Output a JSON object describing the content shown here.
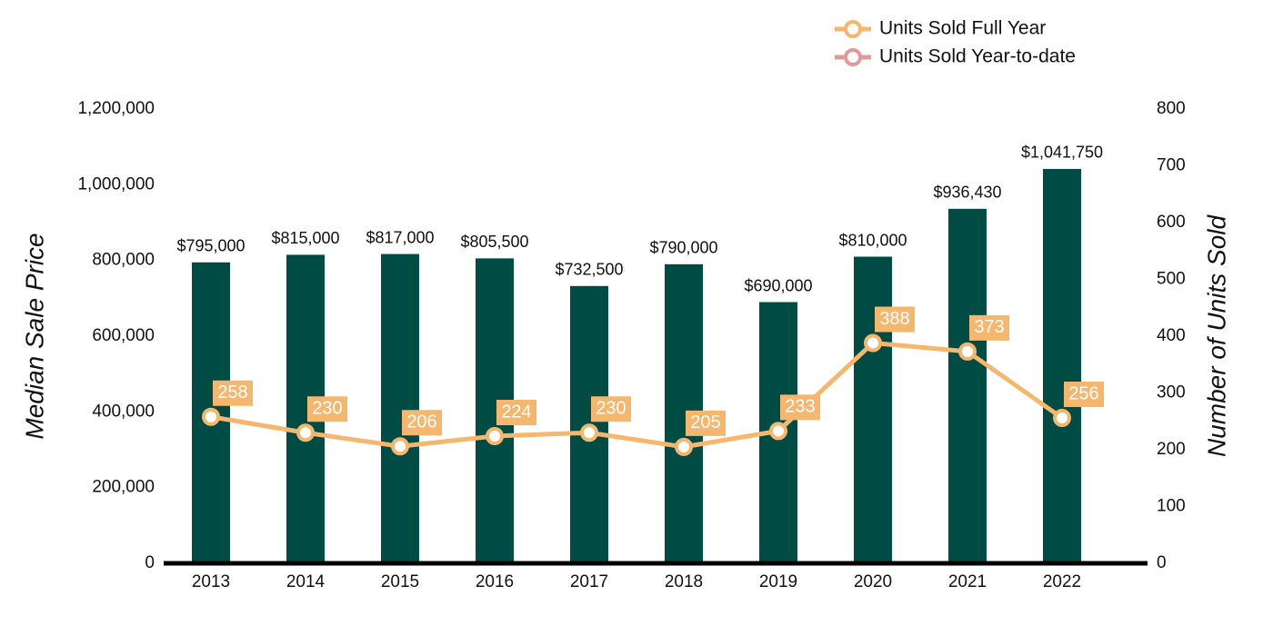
{
  "chart_data": {
    "type": "bar",
    "categories": [
      "2013",
      "2014",
      "2015",
      "2016",
      "2017",
      "2018",
      "2019",
      "2020",
      "2021",
      "2022"
    ],
    "values": [
      795000,
      815000,
      817000,
      805500,
      732500,
      790000,
      690000,
      810000,
      936430,
      1041750
    ],
    "value_labels": [
      "$795,000",
      "$815,000",
      "$817,000",
      "$805,500",
      "$732,500",
      "$790,000",
      "$690,000",
      "$810,000",
      "$936,430",
      "$1,041,750"
    ],
    "color": "#004c45",
    "y_label": "Median Sale Price",
    "y2_label": "Number of Units Sold",
    "ylim": [
      0,
      1200000
    ],
    "yticks": [
      0,
      {
        "value": 200000,
        "label": "200,000"
      },
      {
        "value": 400000,
        "label": "400,000"
      },
      {
        "value": 600000,
        "label": "600,000"
      },
      {
        "value": 800000,
        "label": "800,000"
      },
      {
        "value": 1000000,
        "label": "1,000,000"
      },
      {
        "value": 1200000,
        "label": "1,200,000"
      }
    ],
    "y2lim": [
      0,
      800
    ],
    "y2ticks": [
      0,
      100,
      200,
      300,
      400,
      500,
      600,
      700,
      800
    ],
    "legend": "top-right",
    "series": [
      {
        "name": "Units Sold Full Year",
        "type": "line",
        "axis": "y2",
        "color": "#f5b66e",
        "values": [
          258,
          230,
          206,
          224,
          230,
          205,
          233,
          388,
          373,
          256
        ]
      },
      {
        "name": "Units Sold Year-to-date",
        "type": "line",
        "axis": "y2",
        "color": "#e09a9b",
        "values": [
          null,
          null,
          null,
          null,
          null,
          null,
          null,
          null,
          null,
          null
        ]
      }
    ]
  }
}
